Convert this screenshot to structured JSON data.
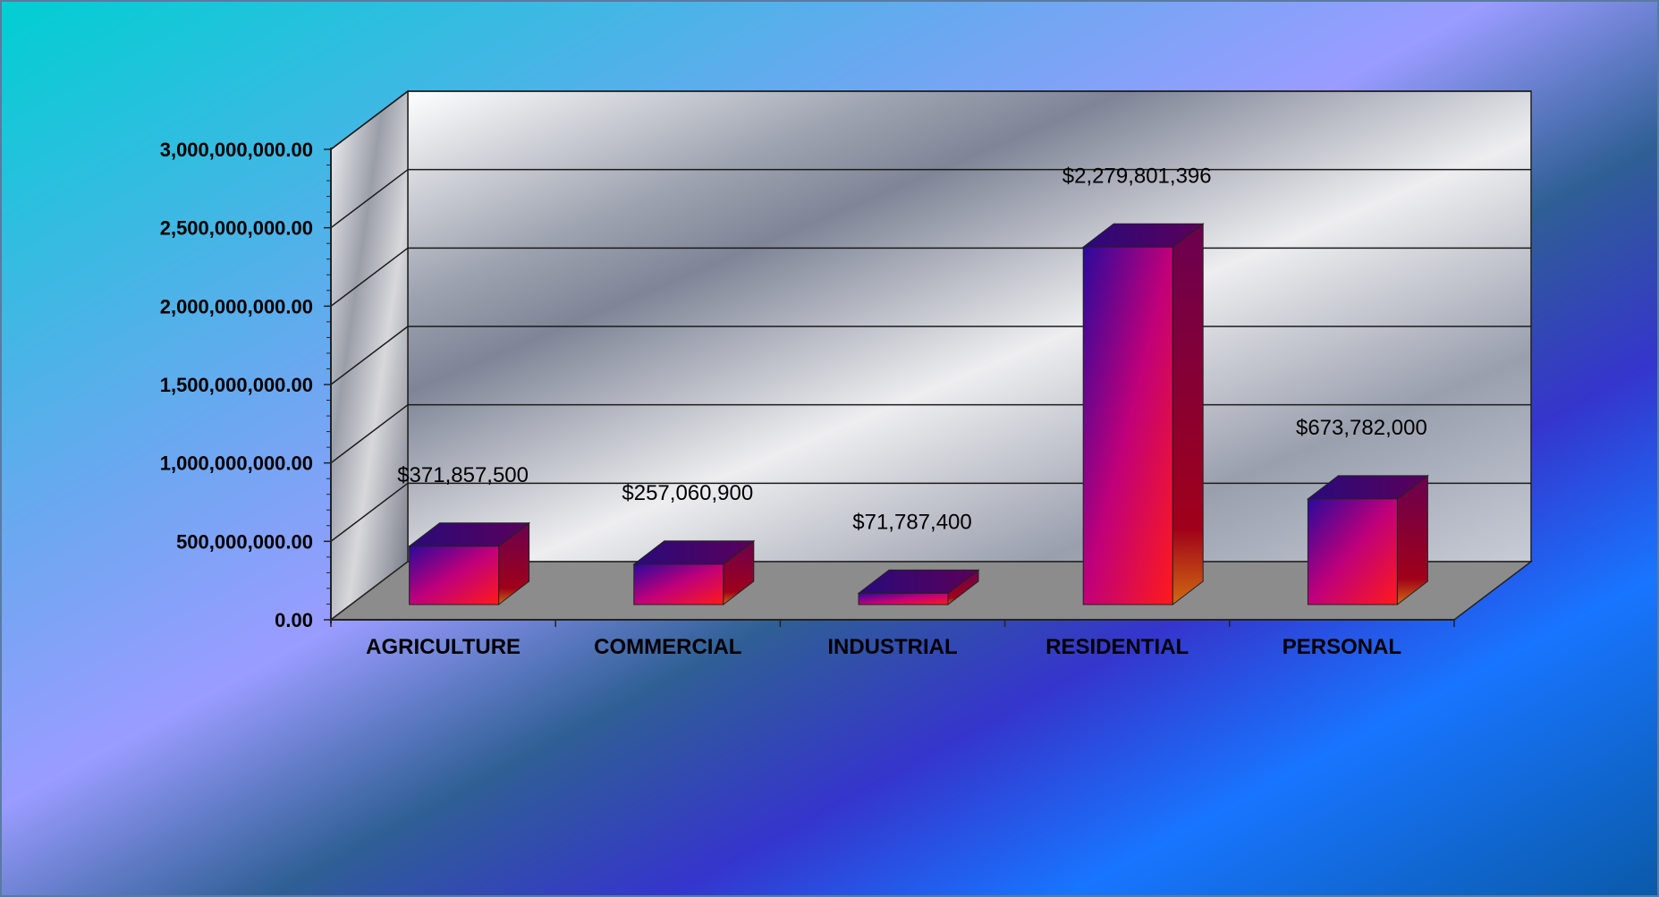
{
  "chart_data": {
    "type": "bar",
    "title": "",
    "xlabel": "",
    "ylabel": "",
    "categories": [
      "AGRICULTURE",
      "COMMERCIAL",
      "INDUSTRIAL",
      "RESIDENTIAL",
      "PERSONAL"
    ],
    "values": [
      371857500,
      257060900,
      71787400,
      2279801396,
      673782000
    ],
    "data_labels": [
      "$371,857,500",
      "$257,060,900",
      "$71,787,400",
      "$2,279,801,396",
      "$673,782,000"
    ],
    "ylim": [
      0,
      3000000000
    ],
    "yticks": [
      0,
      500000000,
      1000000000,
      1500000000,
      2000000000,
      2500000000,
      3000000000
    ],
    "ytick_labels": [
      "0.00",
      "500,000,000.00",
      "1,000,000,000.00",
      "1,500,000,000.00",
      "2,000,000,000.00",
      "2,500,000,000.00",
      "3,000,000,000.00"
    ],
    "grid": true,
    "legend": "none",
    "three_d": true,
    "colors": {
      "bar_front_top": "#2a0a9c",
      "bar_front_mid": "#c2007a",
      "bar_front_bottom": "#ff1a1a",
      "bar_side": "#8a0040",
      "bar_top": "#3a0070",
      "floor": "#8c8c8c",
      "wall": "#c9ccd4",
      "background_start": "#00d0d0",
      "background_end": "#1560d8"
    }
  }
}
